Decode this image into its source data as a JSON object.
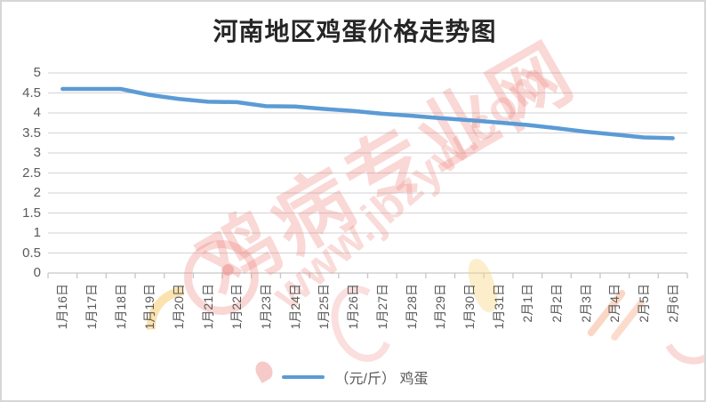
{
  "title": "河南地区鸡蛋价格走势图",
  "legend": {
    "label": "（元/斤） 鸡蛋"
  },
  "watermark": {
    "brand": "鸡病专业网",
    "url": "www.jbzyw.com"
  },
  "colors": {
    "line": "#5B9BD5",
    "grid": "#D9D9D9",
    "axis": "#C6C6C6",
    "axis_text": "#595959",
    "title_text": "#262626",
    "watermark_pink": "#EC807A",
    "watermark_yellow": "#F7CA6E"
  },
  "chart_data": {
    "type": "line",
    "title": "河南地区鸡蛋价格走势图",
    "xlabel": "",
    "ylabel": "",
    "categories": [
      "1月16日",
      "1月17日",
      "1月18日",
      "1月19日",
      "1月20日",
      "1月21日",
      "1月22日",
      "1月23日",
      "1月24日",
      "1月25日",
      "1月26日",
      "1月27日",
      "1月28日",
      "1月29日",
      "1月30日",
      "1月31日",
      "2月1日",
      "2月2日",
      "2月3日",
      "2月4日",
      "2月5日",
      "2月6日"
    ],
    "series": [
      {
        "name": "（元/斤） 鸡蛋",
        "values": [
          4.6,
          4.6,
          4.6,
          4.45,
          4.35,
          4.28,
          4.27,
          4.17,
          4.16,
          4.1,
          4.05,
          3.98,
          3.93,
          3.87,
          3.82,
          3.76,
          3.7,
          3.62,
          3.53,
          3.46,
          3.39,
          3.37
        ]
      }
    ],
    "ylim": [
      0,
      5
    ],
    "yticks": [
      0,
      0.5,
      1,
      1.5,
      2,
      2.5,
      3,
      3.5,
      4,
      4.5,
      5
    ],
    "grid": true,
    "legend_position": "bottom"
  }
}
